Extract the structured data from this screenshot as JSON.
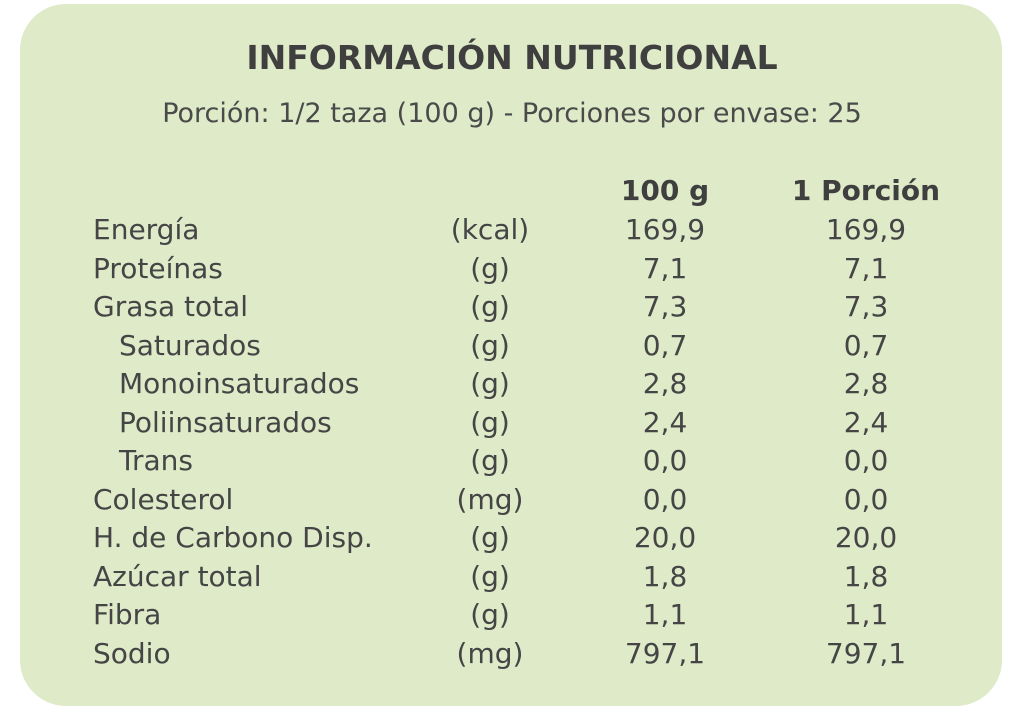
{
  "label": {
    "title": "INFORMACIÓN NUTRICIONAL",
    "subtitle": "Porción: 1/2 taza (100 g) - Porciones por envase: 25",
    "columns": {
      "per_100g": "100 g",
      "per_portion": "1 Porción"
    },
    "background_color": "#deeac8",
    "rows": [
      {
        "name": "Energía",
        "unit": "(kcal)",
        "per_100g": "169,9",
        "per_portion": "169,9",
        "indent": false
      },
      {
        "name": "Proteínas",
        "unit": "(g)",
        "per_100g": "7,1",
        "per_portion": "7,1",
        "indent": false
      },
      {
        "name": "Grasa total",
        "unit": "(g)",
        "per_100g": "7,3",
        "per_portion": "7,3",
        "indent": false
      },
      {
        "name": "Saturados",
        "unit": "(g)",
        "per_100g": "0,7",
        "per_portion": "0,7",
        "indent": true
      },
      {
        "name": "Monoinsaturados",
        "unit": "(g)",
        "per_100g": "2,8",
        "per_portion": "2,8",
        "indent": true
      },
      {
        "name": "Poliinsaturados",
        "unit": "(g)",
        "per_100g": "2,4",
        "per_portion": "2,4",
        "indent": true
      },
      {
        "name": "Trans",
        "unit": "(g)",
        "per_100g": "0,0",
        "per_portion": "0,0",
        "indent": true
      },
      {
        "name": "Colesterol",
        "unit": "(mg)",
        "per_100g": "0,0",
        "per_portion": "0,0",
        "indent": false
      },
      {
        "name": "H. de Carbono Disp.",
        "unit": "(g)",
        "per_100g": "20,0",
        "per_portion": "20,0",
        "indent": false
      },
      {
        "name": "Azúcar total",
        "unit": "(g)",
        "per_100g": "1,8",
        "per_portion": "1,8",
        "indent": false
      },
      {
        "name": "Fibra",
        "unit": "(g)",
        "per_100g": "1,1",
        "per_portion": "1,1",
        "indent": false
      },
      {
        "name": "Sodio",
        "unit": "(mg)",
        "per_100g": "797,1",
        "per_portion": "797,1",
        "indent": false
      }
    ]
  }
}
